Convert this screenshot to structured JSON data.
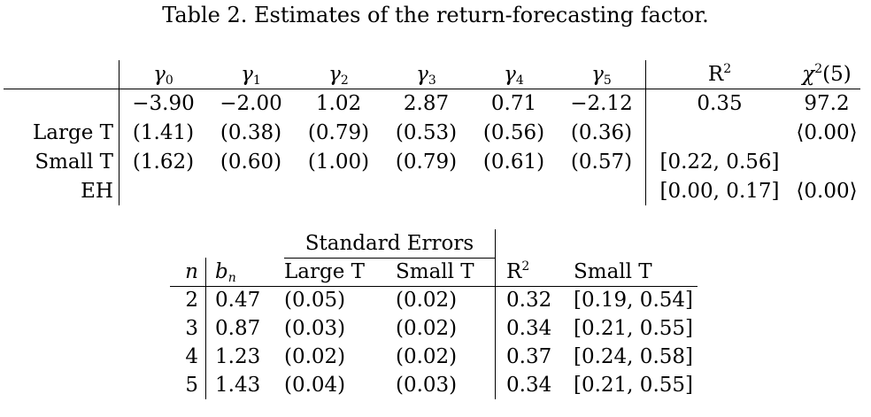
{
  "caption": "Table 2. Estimates of the return-forecasting factor.",
  "table1": {
    "header": {
      "gamma_symbol": "γ",
      "gamma_subscripts": [
        "0",
        "1",
        "2",
        "3",
        "4",
        "5"
      ],
      "r2_base": "R",
      "r2_exp": "2",
      "chi_base": "χ",
      "chi_exp": "2",
      "chi_arg": "(5)"
    },
    "rows": [
      {
        "label": "",
        "gammas": [
          "−3.90",
          "−2.00",
          "1.02",
          "2.87",
          "0.71",
          "−2.12"
        ],
        "r2": "0.35",
        "chi": "97.2"
      },
      {
        "label": "Large T",
        "gammas": [
          "(1.41)",
          "(0.38)",
          "(0.79)",
          "(0.53)",
          "(0.56)",
          "(0.36)"
        ],
        "r2": "",
        "chi": "⟨0.00⟩"
      },
      {
        "label": "Small T",
        "gammas": [
          "(1.62)",
          "(0.60)",
          "(1.00)",
          "(0.79)",
          "(0.61)",
          "(0.57)"
        ],
        "r2": "[0.22, 0.56]",
        "chi": ""
      },
      {
        "label": "EH",
        "gammas": [
          "",
          "",
          "",
          "",
          "",
          ""
        ],
        "r2": "[0.00, 0.17]",
        "chi": "⟨0.00⟩"
      }
    ]
  },
  "table2": {
    "group_header": "Standard Errors",
    "columns": {
      "n": "n",
      "bn_base": "b",
      "bn_sub": "n",
      "large_t": "Large T",
      "small_t": "Small T",
      "r2_base": "R",
      "r2_exp": "2",
      "small_t_r2": "Small T"
    },
    "rows": [
      {
        "n": "2",
        "bn": "0.47",
        "large_t": "(0.05)",
        "small_t": "(0.02)",
        "r2": "0.32",
        "ci": "[0.19, 0.54]"
      },
      {
        "n": "3",
        "bn": "0.87",
        "large_t": "(0.03)",
        "small_t": "(0.02)",
        "r2": "0.34",
        "ci": "[0.21, 0.55]"
      },
      {
        "n": "4",
        "bn": "1.23",
        "large_t": "(0.02)",
        "small_t": "(0.02)",
        "r2": "0.37",
        "ci": "[0.24, 0.58]"
      },
      {
        "n": "5",
        "bn": "1.43",
        "large_t": "(0.04)",
        "small_t": "(0.03)",
        "r2": "0.34",
        "ci": "[0.21, 0.55]"
      }
    ]
  }
}
